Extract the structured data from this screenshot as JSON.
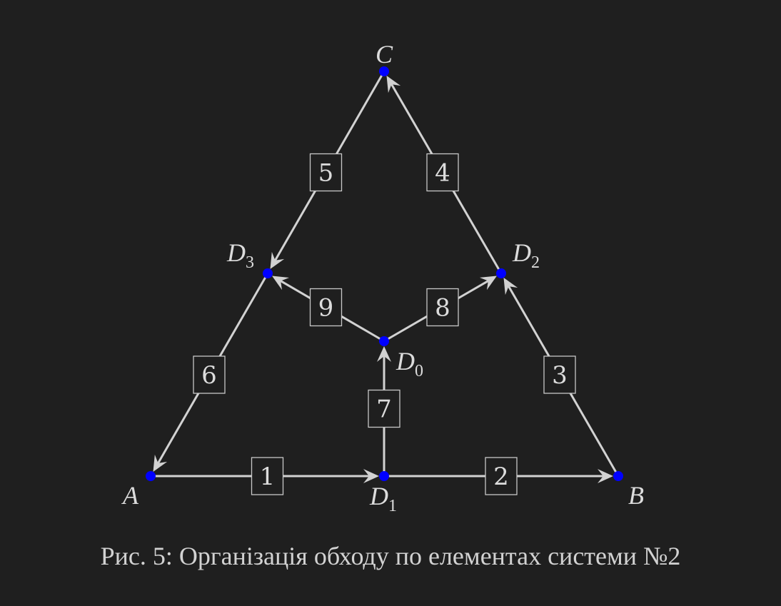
{
  "nodes": [
    {
      "id": "C",
      "label": "C",
      "sub": ""
    },
    {
      "id": "D3",
      "label": "D",
      "sub": "3"
    },
    {
      "id": "D2",
      "label": "D",
      "sub": "2"
    },
    {
      "id": "D0",
      "label": "D",
      "sub": "0"
    },
    {
      "id": "A",
      "label": "A",
      "sub": ""
    },
    {
      "id": "D1",
      "label": "D",
      "sub": "1"
    },
    {
      "id": "B",
      "label": "B",
      "sub": ""
    }
  ],
  "edges": [
    {
      "label": "1",
      "from": "A",
      "to": "D1"
    },
    {
      "label": "2",
      "from": "D1",
      "to": "B"
    },
    {
      "label": "3",
      "from": "B",
      "to": "D2"
    },
    {
      "label": "4",
      "from": "D2",
      "to": "C"
    },
    {
      "label": "5",
      "from": "C",
      "to": "D3"
    },
    {
      "label": "6",
      "from": "D3",
      "to": "A"
    },
    {
      "label": "7",
      "from": "D1",
      "to": "D0"
    },
    {
      "label": "8",
      "from": "D0",
      "to": "D2"
    },
    {
      "label": "9",
      "from": "D0",
      "to": "D3"
    }
  ],
  "caption": "Рис. 5: Організація обходу по елементах системи №2",
  "colors": {
    "background": "#1f1f1f",
    "node": "#0000ff",
    "edge": "#d2d2d2"
  }
}
